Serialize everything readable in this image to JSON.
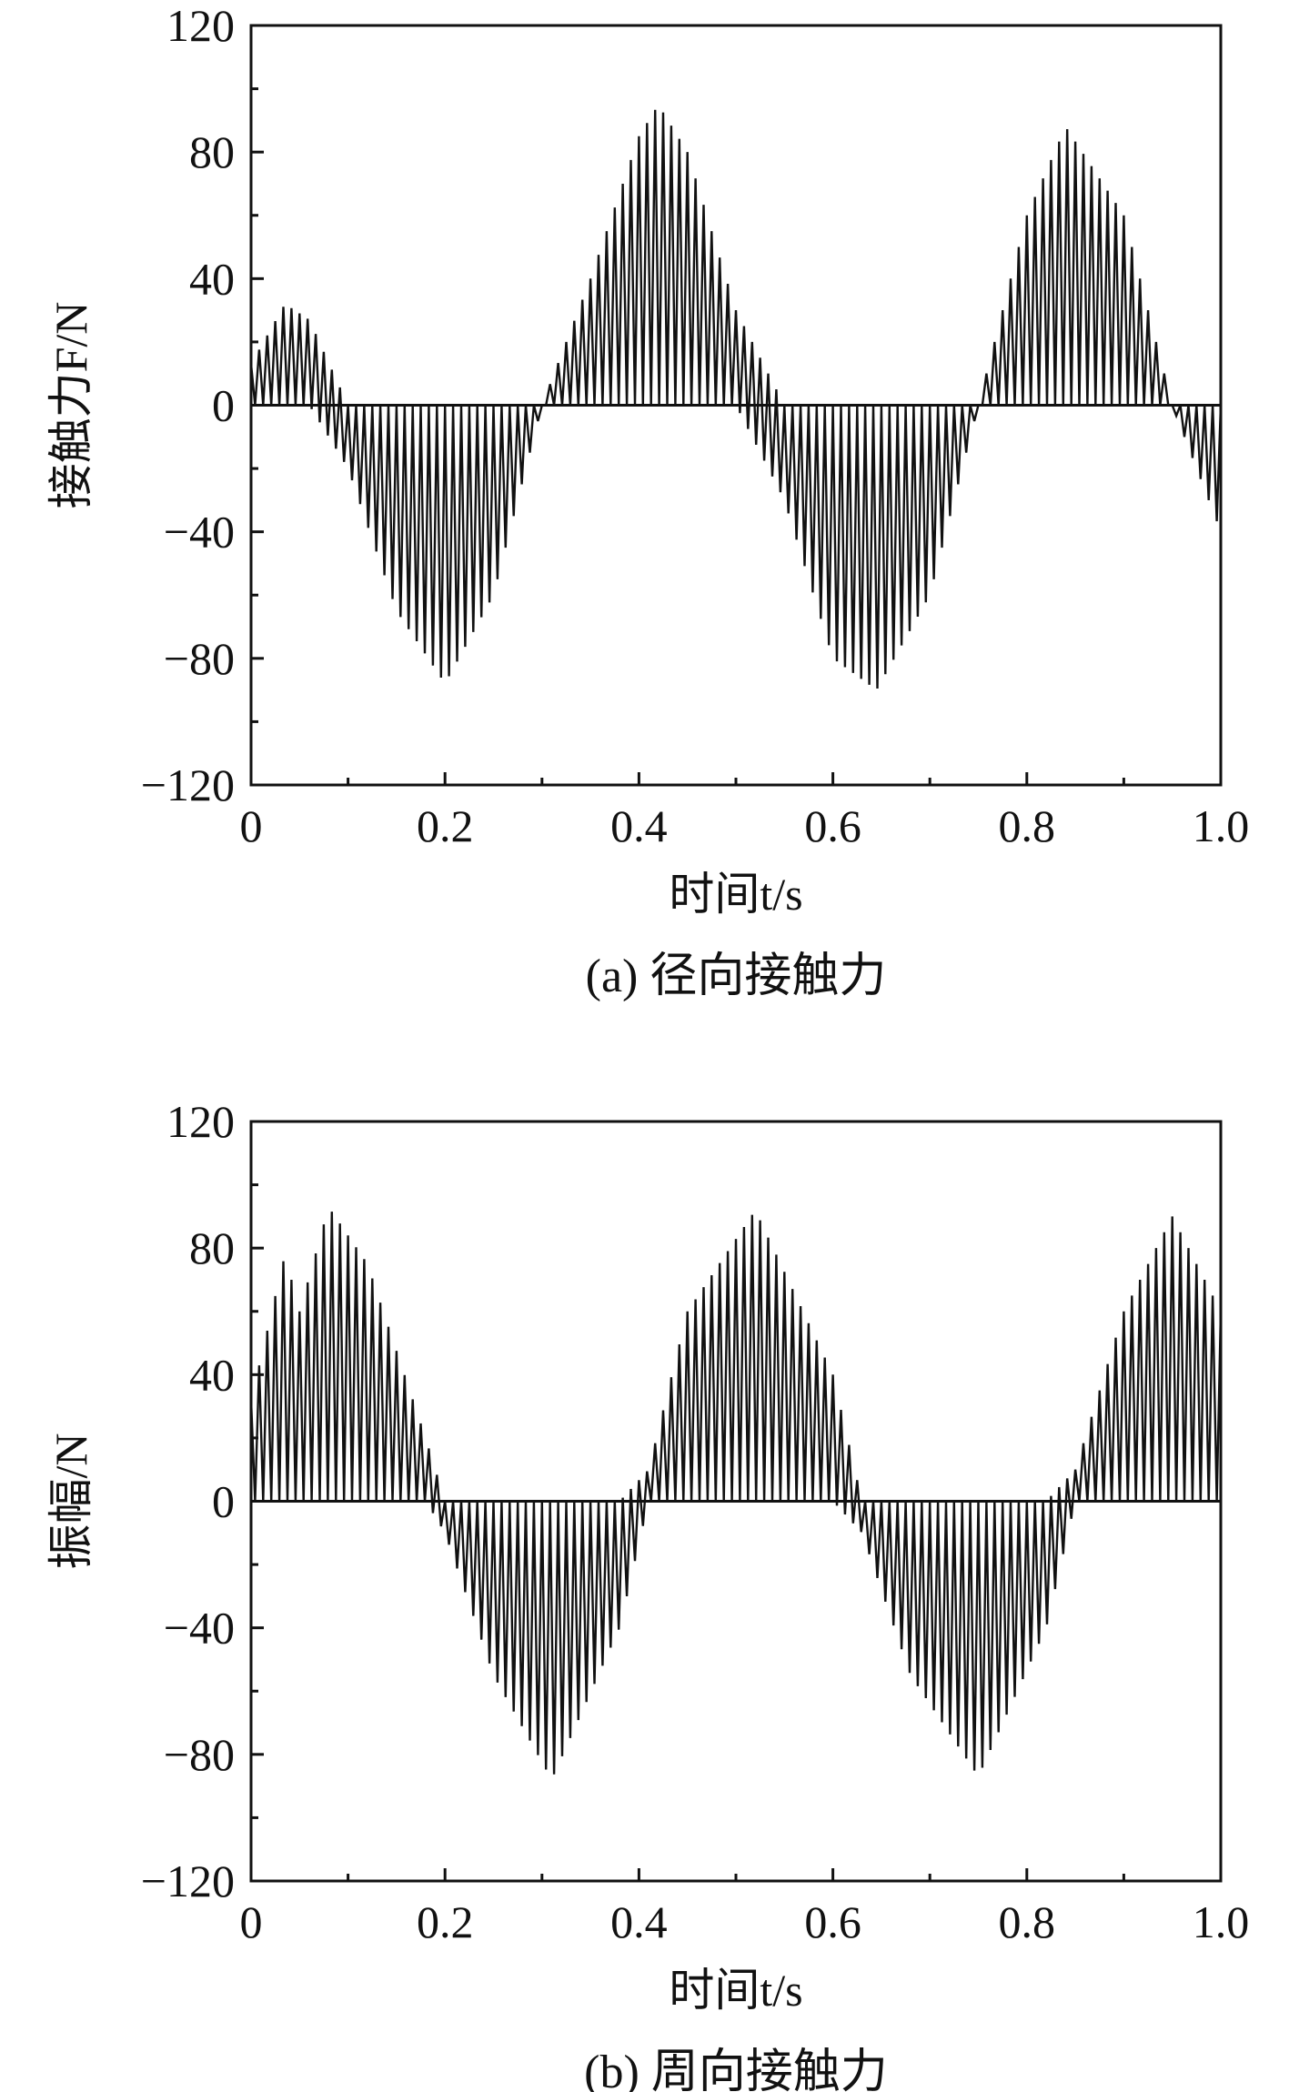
{
  "chart_data": [
    {
      "type": "line",
      "caption": "(a) 径向接触力",
      "xlabel": "时间t/s",
      "ylabel": "接触力F/N",
      "xlim": [
        0,
        1.0
      ],
      "ylim": [
        -120,
        120
      ],
      "xticks": [
        0,
        0.2,
        0.4,
        0.6,
        0.8,
        1.0
      ],
      "xtick_labels": [
        "0",
        "0.2",
        "0.4",
        "0.6",
        "0.8",
        "1.0"
      ],
      "yticks": [
        -120,
        -80,
        -40,
        0,
        40,
        80,
        120
      ],
      "ytick_labels": [
        "−120",
        "−80",
        "−40",
        "0",
        "40",
        "80",
        "120"
      ],
      "grid": false,
      "series": [
        {
          "color": "#111111",
          "envelope_t": [
            0,
            0.035,
            0.06,
            0.1,
            0.15,
            0.2,
            0.25,
            0.3,
            0.35,
            0.4,
            0.42,
            0.45,
            0.5,
            0.55,
            0.6,
            0.645,
            0.7,
            0.75,
            0.8,
            0.84,
            0.9,
            0.95,
            1.0
          ],
          "envelope_max": [
            13,
            32,
            27,
            0,
            0,
            0,
            0,
            0,
            40,
            85,
            95,
            80,
            30,
            0,
            0,
            0,
            0,
            0,
            60,
            88,
            60,
            0,
            0
          ],
          "envelope_min": [
            0,
            0,
            0,
            -20,
            -65,
            -88,
            -60,
            0,
            0,
            0,
            0,
            0,
            0,
            -30,
            -80,
            -90,
            -60,
            0,
            0,
            0,
            0,
            0,
            -40
          ]
        }
      ]
    },
    {
      "type": "line",
      "caption": "(b) 周向接触力",
      "xlabel": "时间t/s",
      "ylabel": "振幅/N",
      "xlim": [
        0,
        1.0
      ],
      "ylim": [
        -120,
        120
      ],
      "xticks": [
        0,
        0.2,
        0.4,
        0.6,
        0.8,
        1.0
      ],
      "xtick_labels": [
        "0",
        "0.2",
        "0.4",
        "0.6",
        "0.8",
        "1.0"
      ],
      "yticks": [
        -120,
        -80,
        -40,
        0,
        40,
        80,
        120
      ],
      "ytick_labels": [
        "−120",
        "−80",
        "−40",
        "0",
        "40",
        "80",
        "120"
      ],
      "grid": false,
      "series": [
        {
          "color": "#111111",
          "envelope_t": [
            0,
            0.035,
            0.05,
            0.08,
            0.12,
            0.18,
            0.2,
            0.25,
            0.31,
            0.38,
            0.41,
            0.45,
            0.52,
            0.6,
            0.63,
            0.68,
            0.75,
            0.82,
            0.85,
            0.9,
            0.95,
            1.0
          ],
          "envelope_max": [
            32,
            78,
            60,
            93,
            75,
            20,
            0,
            0,
            0,
            0,
            10,
            60,
            92,
            40,
            0,
            0,
            0,
            0,
            10,
            60,
            90,
            60
          ],
          "envelope_min": [
            0,
            0,
            0,
            0,
            0,
            0,
            -10,
            -55,
            -88,
            -40,
            0,
            0,
            0,
            0,
            -10,
            -55,
            -87,
            -40,
            0,
            0,
            0,
            0
          ]
        }
      ]
    }
  ]
}
